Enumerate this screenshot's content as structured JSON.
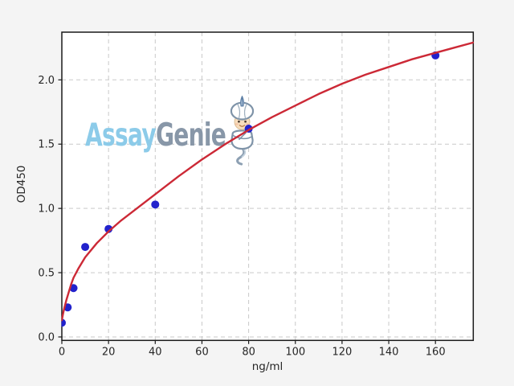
{
  "figure": {
    "background_color": "#f4f4f4",
    "plot_background_color": "#ffffff",
    "grid_color": "#c9c9c9",
    "spine_color": "#1a1a1a",
    "tick_label_color": "#262626"
  },
  "watermark": {
    "part1": "Assay",
    "part2": "Genie",
    "part1_color": "#8ccbe9",
    "part2_color": "#8897a8",
    "mascot_icon": "genie-mascot"
  },
  "chart_data": {
    "type": "scatter",
    "title": "",
    "xlabel": "ng/ml",
    "ylabel": "OD450",
    "xlim": [
      0,
      176.2
    ],
    "ylim": [
      -0.027,
      2.371
    ],
    "grid": true,
    "legend": false,
    "x_ticks": [
      {
        "v": 0,
        "label": "0"
      },
      {
        "v": 20,
        "label": "20"
      },
      {
        "v": 40,
        "label": "40"
      },
      {
        "v": 60,
        "label": "60"
      },
      {
        "v": 80,
        "label": "80"
      },
      {
        "v": 100,
        "label": "100"
      },
      {
        "v": 120,
        "label": "120"
      },
      {
        "v": 140,
        "label": "140"
      },
      {
        "v": 160,
        "label": "160"
      }
    ],
    "y_ticks": [
      {
        "v": 0,
        "label": "0.0"
      },
      {
        "v": 0.5,
        "label": "0.5"
      },
      {
        "v": 1,
        "label": "1.0"
      },
      {
        "v": 1.5,
        "label": "1.5"
      },
      {
        "v": 2,
        "label": "2.0"
      }
    ],
    "series": [
      {
        "name": "standard-points",
        "kind": "scatter",
        "color": "#2222cc",
        "marker_radius": 5,
        "x": [
          0,
          2.5,
          5,
          10,
          20,
          40,
          80,
          160
        ],
        "y": [
          0.11,
          0.23,
          0.38,
          0.7,
          0.84,
          1.03,
          1.62,
          2.19
        ]
      },
      {
        "name": "fit-curve",
        "kind": "line",
        "color": "#cc2936",
        "width": 2.4,
        "x": [
          0,
          0.5,
          1,
          2,
          3,
          4,
          5,
          7,
          10,
          15,
          20,
          25,
          30,
          40,
          50,
          60,
          70,
          80,
          90,
          100,
          110,
          120,
          130,
          140,
          150,
          160,
          168,
          176.2
        ],
        "y": [
          0.13,
          0.18,
          0.22,
          0.29,
          0.35,
          0.41,
          0.46,
          0.53,
          0.62,
          0.73,
          0.82,
          0.9,
          0.97,
          1.11,
          1.25,
          1.38,
          1.5,
          1.61,
          1.71,
          1.8,
          1.89,
          1.97,
          2.04,
          2.1,
          2.16,
          2.21,
          2.25,
          2.29
        ]
      }
    ]
  }
}
